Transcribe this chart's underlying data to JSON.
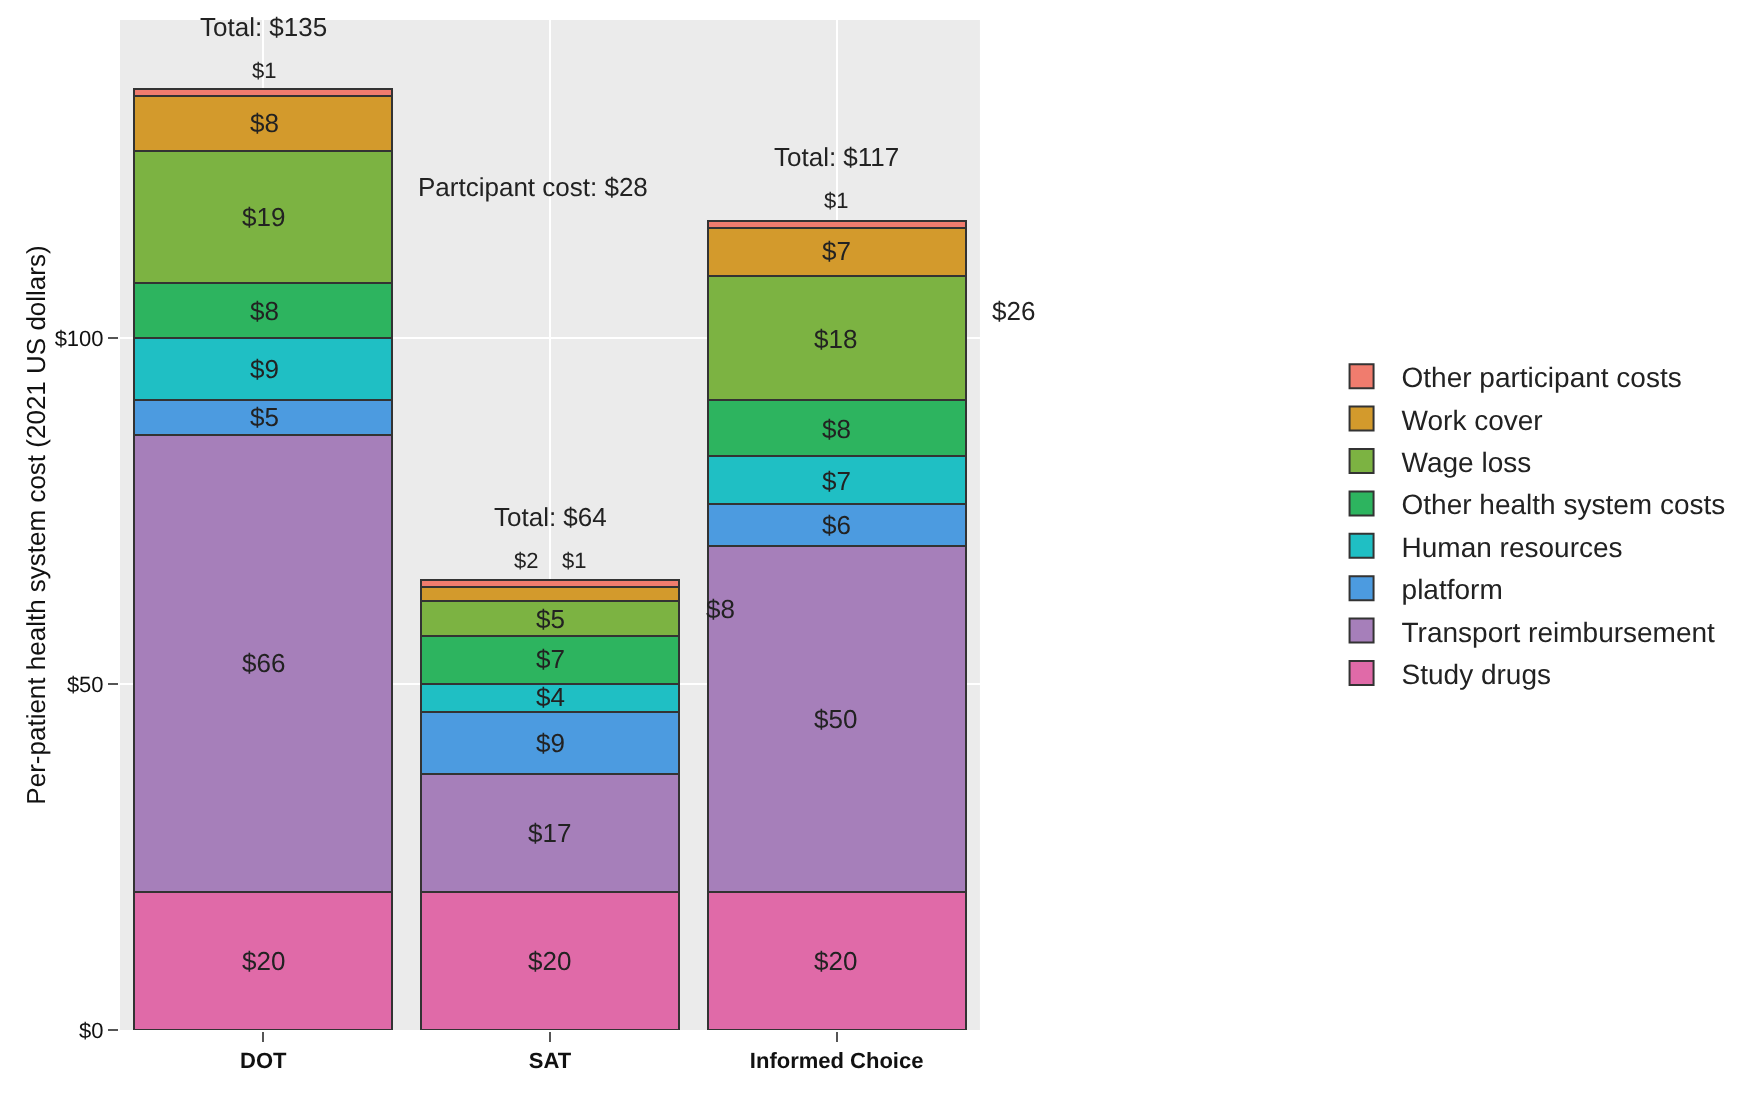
{
  "chart_data": {
    "type": "bar",
    "stacked": true,
    "ylabel": "Per-patient health system cost (2021 US dollars)",
    "categories": [
      "DOT",
      "SAT",
      "Informed Choice"
    ],
    "series": [
      {
        "name": "Study drugs",
        "color": "#e06aa8",
        "values": [
          20,
          20,
          20
        ],
        "value_labels": [
          "$20",
          "$20",
          "$20"
        ]
      },
      {
        "name": "Transport reimbursement",
        "color": "#a67fba",
        "values": [
          66,
          17,
          50
        ],
        "value_labels": [
          "$66",
          "$17",
          "$50"
        ]
      },
      {
        "name": "platform",
        "color": "#4c9be0",
        "values": [
          5,
          9,
          6
        ],
        "value_labels": [
          "$5",
          "$9",
          "$6"
        ]
      },
      {
        "name": "Human resources",
        "color": "#1fbfc4",
        "values": [
          9,
          4,
          7
        ],
        "value_labels": [
          "$9",
          "$4",
          "$7"
        ]
      },
      {
        "name": "Other health system costs",
        "color": "#2db45f",
        "values": [
          8,
          7,
          8
        ],
        "value_labels": [
          "$8",
          "$7",
          "$8"
        ]
      },
      {
        "name": "Wage loss",
        "color": "#7cb342",
        "values": [
          19,
          5,
          18
        ],
        "value_labels": [
          "$19",
          "$5",
          "$18"
        ]
      },
      {
        "name": "Work cover",
        "color": "#d39a2c",
        "values": [
          8,
          2,
          7
        ],
        "value_labels": [
          "$8",
          "$2",
          "$7"
        ]
      },
      {
        "name": "Other participant costs",
        "color": "#f07c6e",
        "values": [
          1,
          1,
          1
        ],
        "value_labels": [
          "$1",
          "$1",
          "$1"
        ]
      }
    ],
    "totals": [
      "Total: $135",
      "Total: $64",
      "Total: $117"
    ],
    "annotations": [
      "Partcipant cost: $28",
      "$8",
      "$26"
    ],
    "ylim": [
      0,
      146
    ],
    "yticks": [
      {
        "value": 0,
        "label": "$0"
      },
      {
        "value": 50,
        "label": "$50"
      },
      {
        "value": 100,
        "label": "$100"
      }
    ],
    "grid": true,
    "legend": "right"
  }
}
